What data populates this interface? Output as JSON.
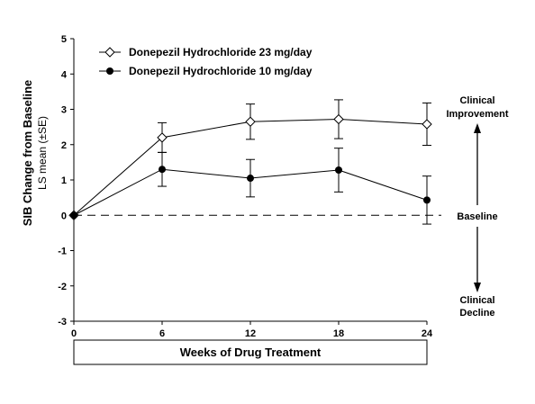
{
  "chart_data": {
    "type": "line",
    "xlabel": "Weeks of Drug Treatment",
    "ylabel": "SIB Change from Baseline",
    "ylabel_sub": "LS mean (±SE)",
    "x": [
      0,
      6,
      12,
      18,
      24
    ],
    "xticks": [
      0,
      6,
      12,
      18,
      24
    ],
    "xlim": [
      0,
      24
    ],
    "ylim": [
      -3,
      5
    ],
    "yticks": [
      -3,
      -2,
      -1,
      0,
      1,
      2,
      3,
      4,
      5
    ],
    "grid": false,
    "legend_position": "top-left",
    "series": [
      {
        "name": "Donepezil Hydrochloride 23 mg/day",
        "marker": "open-diamond",
        "values": [
          0,
          2.2,
          2.65,
          2.72,
          2.58
        ],
        "errors": [
          0,
          0.42,
          0.5,
          0.55,
          0.6
        ]
      },
      {
        "name": "Donepezil Hydrochloride 10 mg/day",
        "marker": "filled-circle",
        "values": [
          0,
          1.3,
          1.05,
          1.28,
          0.43
        ],
        "errors": [
          0,
          0.48,
          0.53,
          0.62,
          0.68
        ]
      }
    ],
    "baseline": {
      "y": 0,
      "label": "Baseline"
    },
    "annotations": {
      "top": [
        "Clinical",
        "Improvement"
      ],
      "bottom": [
        "Clinical",
        "Decline"
      ]
    }
  }
}
